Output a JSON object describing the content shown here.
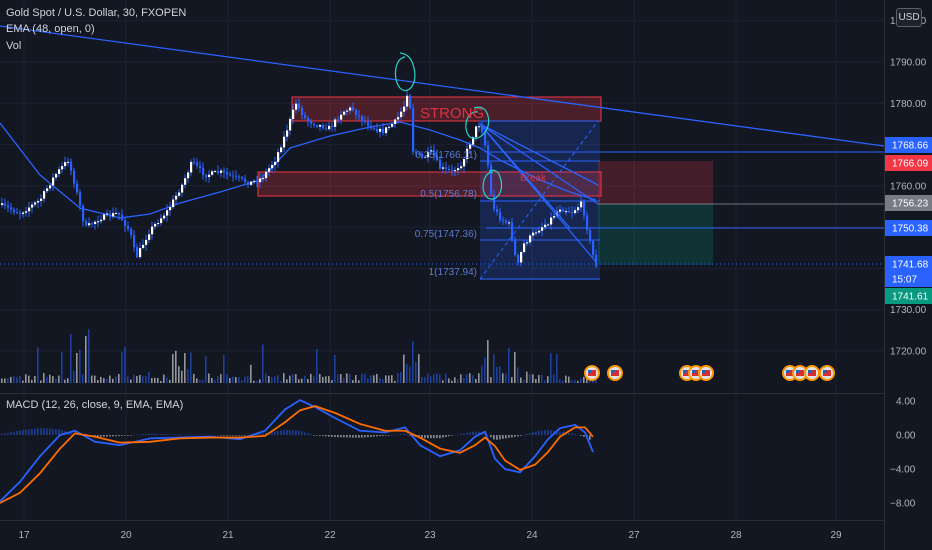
{
  "header": {
    "title": "Gold Spot / U.S. Dollar, 30, FXOPEN",
    "ema": "EMA (48, open, 0)",
    "vol": "Vol",
    "currency": "USD"
  },
  "colors": {
    "background": "#131722",
    "candle": "#2962ff",
    "candle_up": "#ffffff",
    "trendline": "#2962ff",
    "ema": "#2962ff",
    "macd": "#2962ff",
    "signal": "#ff6d00",
    "zone_red": "#f23645",
    "zone_blue": "#2962ff",
    "zone_green": "#089981"
  },
  "chart_data": [
    {
      "type": "candlestick",
      "x_ticks": [
        "17",
        "20",
        "21",
        "22",
        "23",
        "24",
        "27",
        "28",
        "29"
      ],
      "y_ticks": [
        1720,
        1730,
        1740,
        1750,
        1760,
        1770,
        1780,
        1790,
        1800
      ],
      "ylim": [
        1714,
        1801
      ],
      "ema_label": "EMA (48, open, 0)",
      "zone_labels": [
        "STRONG",
        "Break"
      ],
      "fib_labels": [
        "0.25(1766.11)",
        "0.5(1756.78)",
        "0.75(1747.36)",
        "1(1737.94)"
      ],
      "price_tags": [
        {
          "value": "1768.66",
          "color": "#2962ff"
        },
        {
          "value": "1766.09",
          "color": "#f23645"
        },
        {
          "value": "1756.23",
          "color": "#787b86"
        },
        {
          "value": "1750.38",
          "color": "#2962ff"
        },
        {
          "value": "1741.68",
          "color": "#2962ff"
        },
        {
          "value": "15:07",
          "color": "#2962ff"
        },
        {
          "value": "1741.61",
          "color": "#089981"
        }
      ],
      "key_prices": {
        "last": 1741.68,
        "trendline_end": 1768.66,
        "strong_zone": [
          1775.3,
          1781.8
        ],
        "break_zone": [
          1757.2,
          1763.8
        ],
        "fib_0": 1775.5,
        "fib_1": 1737.94,
        "long_stop": 1766.09,
        "long_entry": 1756.23,
        "long_target": 1742.0
      },
      "macd_ticks": [
        "4.00",
        "0.00",
        "−4.00",
        "−8.00"
      ],
      "macd_label": "MACD (12, 26, close, 9, EMA, EMA)"
    }
  ]
}
